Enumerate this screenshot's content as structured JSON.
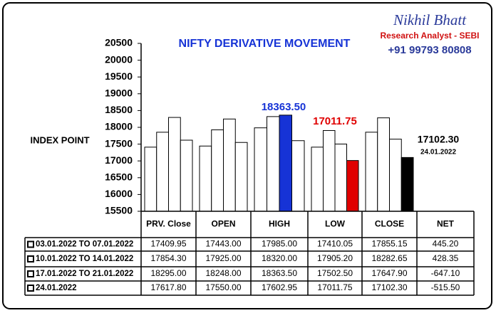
{
  "chart_data": {
    "type": "bar",
    "title": "NIFTY DERIVATIVE MOVEMENT",
    "y_label": "INDEX POINT",
    "categories": [
      "PRV. Close",
      "OPEN",
      "HIGH",
      "LOW",
      "CLOSE"
    ],
    "net_header": "NET",
    "ylim": [
      15500,
      20500
    ],
    "yticks": [
      15500,
      16000,
      16500,
      17000,
      17500,
      18000,
      18500,
      19000,
      19500,
      20000,
      20500
    ],
    "series": [
      {
        "name": "03.01.2022 TO 07.01.2022",
        "colors": [
          "#ffffff",
          "#ffffff",
          "#ffffff",
          "#ffffff",
          "#ffffff"
        ],
        "values": [
          17409.95,
          17443.0,
          17985.0,
          17410.05,
          17855.15
        ],
        "value_labels": [
          "17409.95",
          "17443.00",
          "17985.00",
          "17410.05",
          "17855.15"
        ],
        "net": "445.20"
      },
      {
        "name": "10.01.2022 TO 14.01.2022",
        "colors": [
          "#ffffff",
          "#ffffff",
          "#ffffff",
          "#ffffff",
          "#ffffff"
        ],
        "values": [
          17854.3,
          17925.0,
          18320.0,
          17905.2,
          18282.65
        ],
        "value_labels": [
          "17854.30",
          "17925.00",
          "18320.00",
          "17905.20",
          "18282.65"
        ],
        "net": "428.35"
      },
      {
        "name": "17.01.2022 TO 21.01.2022",
        "colors": [
          "#ffffff",
          "#ffffff",
          "#1633d6",
          "#ffffff",
          "#ffffff"
        ],
        "values": [
          18295.0,
          18248.0,
          18363.5,
          17502.5,
          17647.9
        ],
        "value_labels": [
          "18295.00",
          "18248.00",
          "18363.50",
          "17502.50",
          "17647.90"
        ],
        "net": "-647.10"
      },
      {
        "name": "24.01.2022",
        "colors": [
          "#ffffff",
          "#ffffff",
          "#ffffff",
          "#e00000",
          "#000000"
        ],
        "values": [
          17617.8,
          17550.0,
          17602.95,
          17011.75,
          17102.3
        ],
        "value_labels": [
          "17617.80",
          "17550.00",
          "17602.95",
          "17011.75",
          "17102.30"
        ],
        "net": "-515.50"
      }
    ],
    "annotations": [
      {
        "text": "18363.50",
        "color": "#1633d6"
      },
      {
        "text": "17011.75",
        "color": "#e00000"
      },
      {
        "text": "17102.30",
        "color": "#000000"
      },
      {
        "text": "24.01.2022",
        "color": "#000000"
      }
    ]
  },
  "logo": {
    "name": "Nikhil Bhatt",
    "role": "Research Analyst - SEBI",
    "phone": "+91 99793 80808"
  }
}
